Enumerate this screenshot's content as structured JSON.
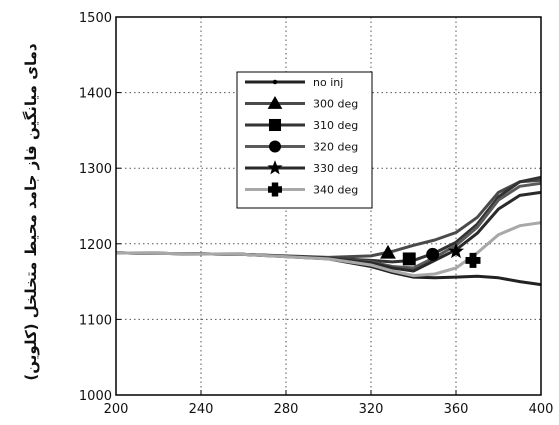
{
  "chart_data": {
    "type": "line",
    "ylabel": "دمای میانگین فاز جامد محیط متخلخل (کلوین)",
    "xlabel": "",
    "title": "",
    "xlim": [
      200,
      400
    ],
    "ylim": [
      1000,
      1500
    ],
    "xticks": [
      200,
      240,
      280,
      320,
      360,
      400
    ],
    "yticks": [
      1000,
      1100,
      1200,
      1300,
      1400,
      1500
    ],
    "xtick_labels": [
      "200",
      "240",
      "280",
      "320",
      "360",
      "400"
    ],
    "ytick_labels": [
      "1000",
      "1100",
      "1200",
      "1300",
      "1400",
      "1500"
    ],
    "grid": true,
    "legend_position": "upper-center",
    "series": [
      {
        "name": "no inj",
        "marker": "dot",
        "color": "#222222",
        "x": [
          200,
          260,
          300,
          320,
          330,
          340,
          350,
          360,
          370,
          380,
          390,
          400
        ],
        "y": [
          1188,
          1186,
          1180,
          1170,
          1162,
          1156,
          1155,
          1156,
          1157,
          1155,
          1150,
          1146
        ]
      },
      {
        "name": "300 deg",
        "marker": "triangle",
        "color": "#4a4a4a",
        "marker_x": 328,
        "marker_y": 1188,
        "x": [
          200,
          260,
          300,
          320,
          330,
          340,
          350,
          360,
          370,
          380,
          390,
          400
        ],
        "y": [
          1188,
          1186,
          1182,
          1184,
          1190,
          1198,
          1205,
          1215,
          1235,
          1268,
          1282,
          1284
        ]
      },
      {
        "name": "310 deg",
        "marker": "square",
        "color": "#333333",
        "marker_x": 338,
        "marker_y": 1180,
        "x": [
          200,
          260,
          300,
          320,
          330,
          340,
          350,
          360,
          370,
          380,
          390,
          400
        ],
        "y": [
          1188,
          1186,
          1181,
          1178,
          1176,
          1178,
          1188,
          1202,
          1226,
          1262,
          1282,
          1288
        ]
      },
      {
        "name": "320 deg",
        "marker": "circle",
        "color": "#5a5a5a",
        "marker_x": 349,
        "marker_y": 1186,
        "x": [
          200,
          260,
          300,
          320,
          330,
          340,
          350,
          360,
          370,
          380,
          390,
          400
        ],
        "y": [
          1188,
          1186,
          1181,
          1176,
          1170,
          1168,
          1182,
          1198,
          1222,
          1258,
          1276,
          1280
        ]
      },
      {
        "name": "330 deg",
        "marker": "star",
        "color": "#2a2a2a",
        "marker_x": 360,
        "marker_y": 1190,
        "x": [
          200,
          260,
          300,
          320,
          330,
          340,
          350,
          360,
          370,
          380,
          390,
          400
        ],
        "y": [
          1188,
          1186,
          1181,
          1175,
          1168,
          1164,
          1178,
          1192,
          1214,
          1246,
          1264,
          1268
        ]
      },
      {
        "name": "340 deg",
        "marker": "cross",
        "color": "#a8a8a8",
        "marker_x": 368,
        "marker_y": 1178,
        "x": [
          200,
          260,
          300,
          320,
          330,
          340,
          350,
          360,
          370,
          380,
          390,
          400
        ],
        "y": [
          1188,
          1186,
          1180,
          1172,
          1164,
          1158,
          1160,
          1168,
          1188,
          1212,
          1224,
          1228
        ]
      }
    ]
  }
}
